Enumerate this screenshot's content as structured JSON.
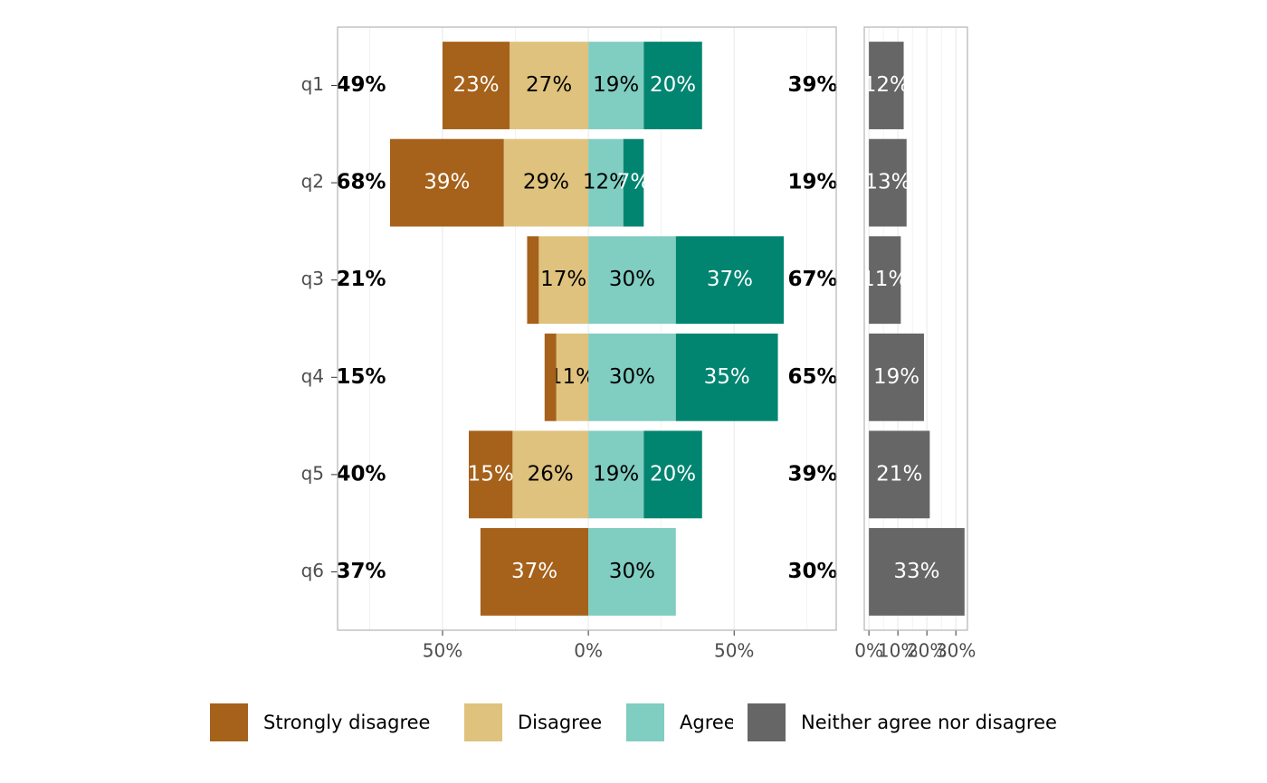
{
  "chart_data": [
    {
      "type": "bar",
      "categories": [
        "q1",
        "q2",
        "q3",
        "q4",
        "q5",
        "q6"
      ],
      "series": [
        {
          "name": "Strongly disagree",
          "color": "#a6611a",
          "side": "left",
          "label_color": "#ffffff",
          "values": [
            23,
            39,
            4,
            4,
            15,
            37
          ],
          "value_labels": [
            "23%",
            "39%",
            null,
            null,
            "15%",
            "37%"
          ]
        },
        {
          "name": "Disagree",
          "color": "#dfc27d",
          "side": "left",
          "label_color": "#000000",
          "values": [
            27,
            29,
            17,
            11,
            26,
            0
          ],
          "value_labels": [
            "27%",
            "29%",
            "17%",
            "11%",
            "26%",
            null
          ]
        },
        {
          "name": "Agree",
          "color": "#80cdc1",
          "side": "right",
          "label_color": "#000000",
          "values": [
            19,
            12,
            30,
            30,
            19,
            30
          ],
          "value_labels": [
            "19%",
            "12%",
            "30%",
            "30%",
            "19%",
            "30%"
          ]
        },
        {
          "color": "#018571",
          "side": "right",
          "label_color": "#ffffff",
          "values": [
            20,
            7,
            37,
            35,
            20,
            0
          ],
          "value_labels": [
            "20%",
            "7%",
            "37%",
            "35%",
            "20%",
            null
          ]
        },
        {
          "name": "Neither agree nor disagree",
          "color": "#666666",
          "side": "panel"
        }
      ],
      "left_totals": {
        "values": [
          49,
          68,
          21,
          15,
          40,
          37
        ],
        "value_labels": [
          "49%",
          "68%",
          "21%",
          "15%",
          "40%",
          "37%"
        ]
      },
      "right_totals": {
        "values": [
          39,
          19,
          67,
          65,
          39,
          30
        ],
        "value_labels": [
          "39%",
          "19%",
          "67%",
          "65%",
          "39%",
          "30%"
        ]
      },
      "xlim": [
        -86,
        85
      ],
      "xticks": [
        {
          "value": -50,
          "label": "50%"
        },
        {
          "value": 0,
          "label": "0%"
        },
        {
          "value": 50,
          "label": "50%"
        }
      ],
      "xminor": [
        -75,
        -25,
        25,
        75
      ],
      "grid": true
    },
    {
      "type": "bar",
      "color": "#666666",
      "label_color": "#ffffff",
      "values": [
        12,
        13,
        11,
        19,
        21,
        33
      ],
      "value_labels": [
        "12%",
        "13%",
        "11%",
        "19%",
        "21%",
        "33%"
      ],
      "xlim": [
        -1.6,
        34
      ],
      "xticks": [
        {
          "value": 0,
          "label": "0%"
        },
        {
          "value": 10,
          "label": "10%"
        },
        {
          "value": 20,
          "label": "20%"
        },
        {
          "value": 30,
          "label": "30%"
        }
      ],
      "xminor": [
        5,
        15,
        25
      ],
      "grid": true
    }
  ]
}
